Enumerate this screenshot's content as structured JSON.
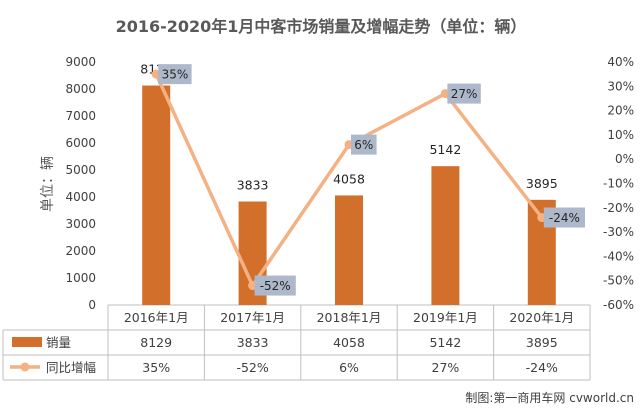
{
  "chart_data": {
    "type": "bar",
    "title": "2016-2020年1月中客市场销量及增幅走势（单位：辆）",
    "ylabel": "单位：辆",
    "categories": [
      "2016年1月",
      "2017年1月",
      "2018年1月",
      "2019年1月",
      "2020年1月"
    ],
    "ylim": [
      0,
      9000
    ],
    "yticks": [
      "0",
      "1000",
      "2000",
      "3000",
      "4000",
      "5000",
      "6000",
      "7000",
      "8000",
      "9000"
    ],
    "y2lim": [
      -60,
      40
    ],
    "y2ticks": [
      "-60%",
      "-50%",
      "-40%",
      "-30%",
      "-20%",
      "-10%",
      "0%",
      "10%",
      "20%",
      "30%",
      "40%"
    ],
    "series": [
      {
        "name": "销量",
        "kind": "bar",
        "color": "#D2702B",
        "values": [
          8129,
          3833,
          4058,
          5142,
          3895
        ],
        "labels": [
          "8129",
          "3833",
          "4058",
          "5142",
          "3895"
        ]
      },
      {
        "name": "同比增幅",
        "kind": "line",
        "axis": "secondary",
        "color": "#F4B183",
        "values": [
          35,
          -52,
          6,
          27,
          -24
        ],
        "labels": [
          "35%",
          "-52%",
          "6%",
          "27%",
          "-24%"
        ]
      }
    ],
    "grid": false,
    "legend": "data-table"
  },
  "credit": "制图:第一商用车网 cvworld.cn"
}
